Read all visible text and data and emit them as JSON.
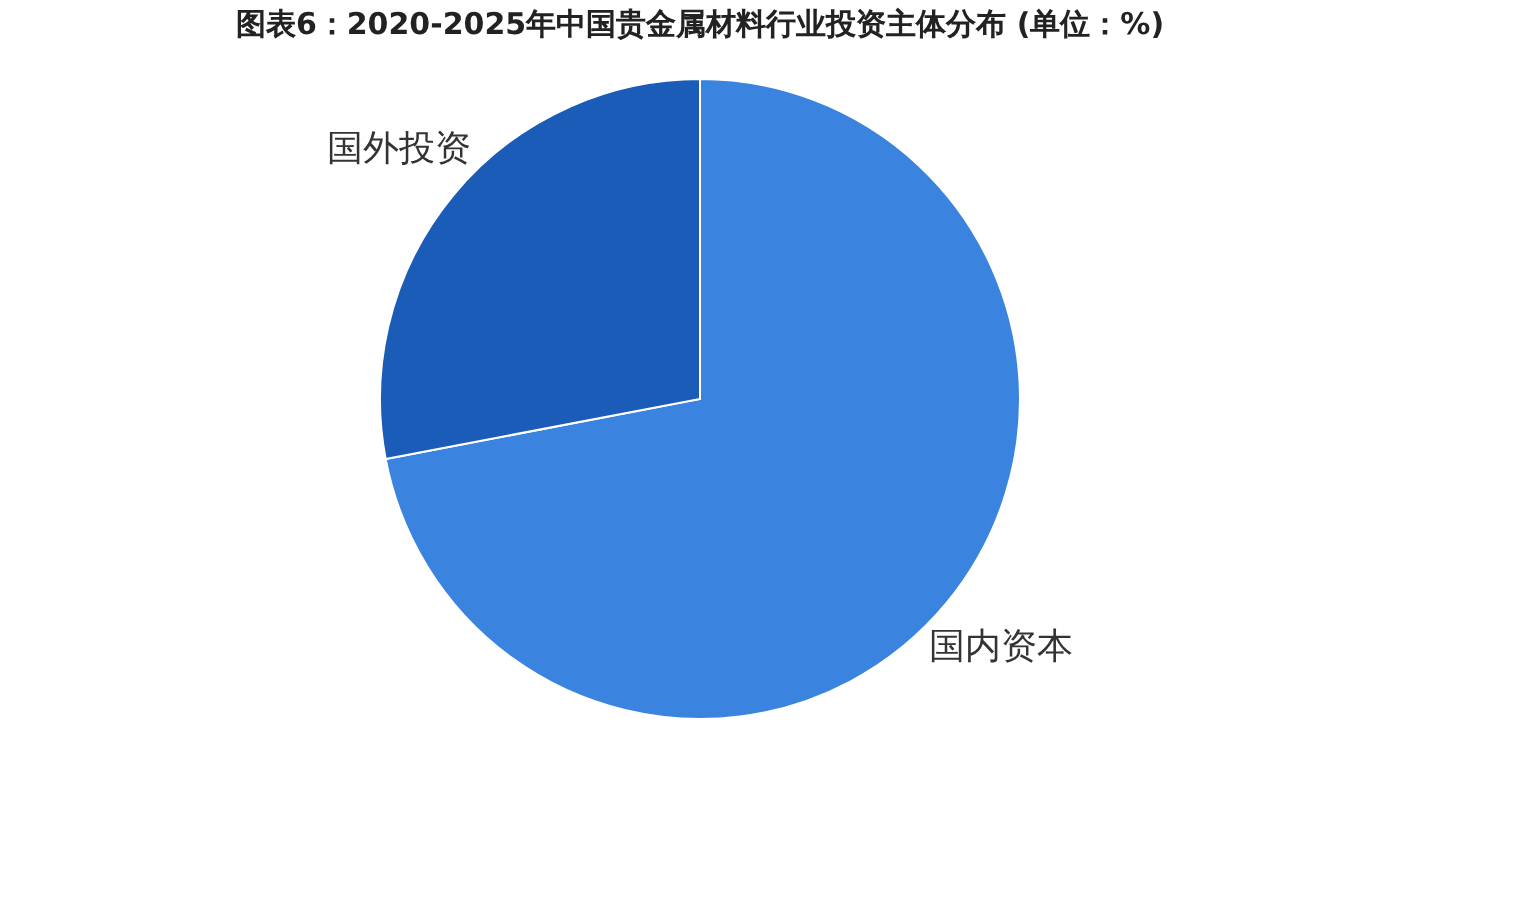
{
  "chart_data": {
    "type": "pie",
    "title": "图表6：2020-2025年中国贵金属材料行业投资主体分布 (单位：%)",
    "categories": [
      "国内资本",
      "国外投资"
    ],
    "values": [
      72,
      28
    ],
    "colors": [
      "#3a84e0",
      "#1a5cb8"
    ],
    "legend": false
  }
}
